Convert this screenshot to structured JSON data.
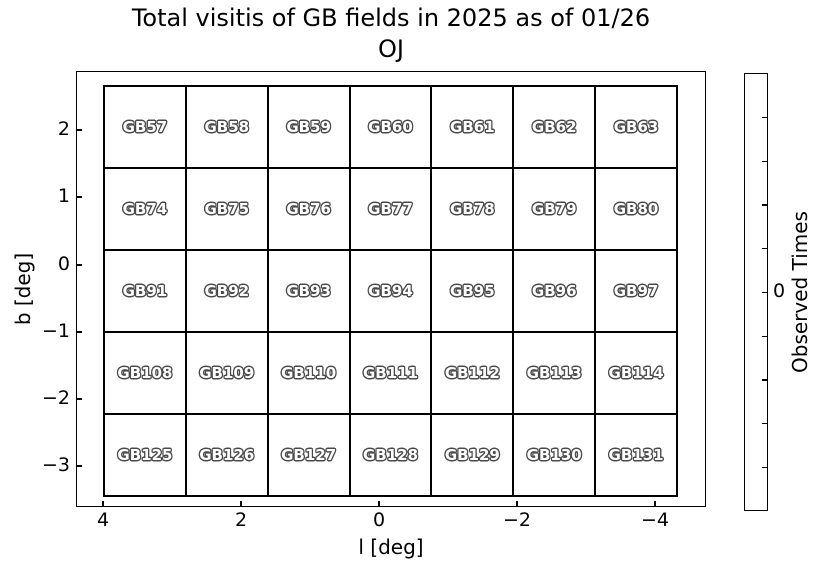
{
  "chart_data": {
    "type": "heatmap",
    "title": "Total visitis of GB fields in 2025 as of 01/26",
    "subtitle": "OJ",
    "xlabel": "l [deg]",
    "ylabel": "b [deg]",
    "x_tick_labels": [
      "4",
      "2",
      "0",
      "−2",
      "−4"
    ],
    "x_tick_values": [
      4,
      2,
      0,
      -2,
      -4
    ],
    "x_axis_reversed": true,
    "xlim": [
      4.4,
      -4.7
    ],
    "y_tick_labels": [
      "2",
      "1",
      "0",
      "−1",
      "−2",
      "−3"
    ],
    "y_tick_values": [
      2,
      1,
      0,
      -1,
      -2,
      -3
    ],
    "ylim": [
      -3.5,
      2.65
    ],
    "grid_on": false,
    "grid_rows": [
      [
        "GB57",
        "GB58",
        "GB59",
        "GB60",
        "GB61",
        "GB62",
        "GB63"
      ],
      [
        "GB74",
        "GB75",
        "GB76",
        "GB77",
        "GB78",
        "GB79",
        "GB80"
      ],
      [
        "GB91",
        "GB92",
        "GB93",
        "GB94",
        "GB95",
        "GB96",
        "GB97"
      ],
      [
        "GB108",
        "GB109",
        "GB110",
        "GB111",
        "GB112",
        "GB113",
        "GB114"
      ],
      [
        "GB125",
        "GB126",
        "GB127",
        "GB128",
        "GB129",
        "GB130",
        "GB131"
      ]
    ],
    "values": [
      [
        0,
        0,
        0,
        0,
        0,
        0,
        0
      ],
      [
        0,
        0,
        0,
        0,
        0,
        0,
        0
      ],
      [
        0,
        0,
        0,
        0,
        0,
        0,
        0
      ],
      [
        0,
        0,
        0,
        0,
        0,
        0,
        0
      ],
      [
        0,
        0,
        0,
        0,
        0,
        0,
        0
      ]
    ],
    "colorbar": {
      "label": "Observed Times",
      "tick_label": "0",
      "tick_count": 9,
      "legend_position": "right"
    },
    "colors": {
      "background": "#ffffff",
      "cell_fill": "#ffffff",
      "cell_border": "#000000",
      "field_label_fill": "#ffffff",
      "field_label_outline": "#4a4a4a",
      "axis_text": "#000000"
    }
  }
}
